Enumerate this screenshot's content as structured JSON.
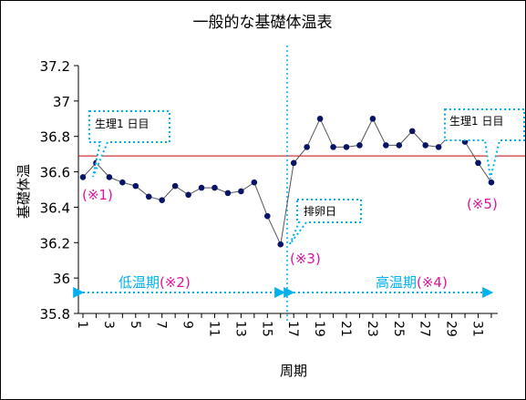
{
  "chart_data": {
    "type": "line",
    "title": "一般的な基礎体温表",
    "xlabel": "周期",
    "ylabel": "基礎体温",
    "ylim": [
      35.8,
      37.2
    ],
    "yticks": [
      "37.2",
      "37",
      "36.8",
      "36.6",
      "36.4",
      "36.2",
      "36",
      "35.8"
    ],
    "xlim": [
      1,
      32
    ],
    "x": [
      1,
      2,
      3,
      4,
      5,
      6,
      7,
      8,
      9,
      10,
      11,
      12,
      13,
      14,
      15,
      16,
      17,
      18,
      19,
      20,
      21,
      22,
      23,
      24,
      25,
      26,
      27,
      28,
      29,
      30,
      31,
      32
    ],
    "xtick_labels": [
      "1",
      "3",
      "5",
      "7",
      "9",
      "11",
      "13",
      "15",
      "17",
      "19",
      "21",
      "23",
      "25",
      "27",
      "29",
      "31"
    ],
    "series": [
      {
        "values": [
          36.57,
          36.65,
          36.57,
          36.54,
          36.52,
          36.46,
          36.44,
          36.52,
          36.47,
          36.51,
          36.51,
          36.48,
          36.49,
          36.54,
          36.35,
          36.19,
          36.65,
          36.74,
          36.9,
          36.74,
          36.74,
          36.75,
          36.9,
          36.75,
          36.75,
          36.83,
          36.75,
          36.74,
          36.82,
          36.77,
          36.65,
          36.54
        ]
      }
    ],
    "reference_line": {
      "y": 36.69
    },
    "ovulation_marker": {
      "x": 16.5
    },
    "grid": false,
    "colors": {
      "series": "#555555",
      "marker": "#0a1466",
      "reference_line": "#c00000",
      "annotation": "#00b0f0",
      "highlight": "#e0139c"
    },
    "annotations": {
      "menses_start_1": "生理1 日目",
      "menses_start_2": "生理1 日目",
      "ovulation_day": "排卵日",
      "note1": "(※1)",
      "note3": "(※3)",
      "note5": "(※5)",
      "low_phase": "低温期",
      "low_phase_note": "(※2)",
      "high_phase": "高温期",
      "high_phase_note": "(※4)"
    }
  }
}
